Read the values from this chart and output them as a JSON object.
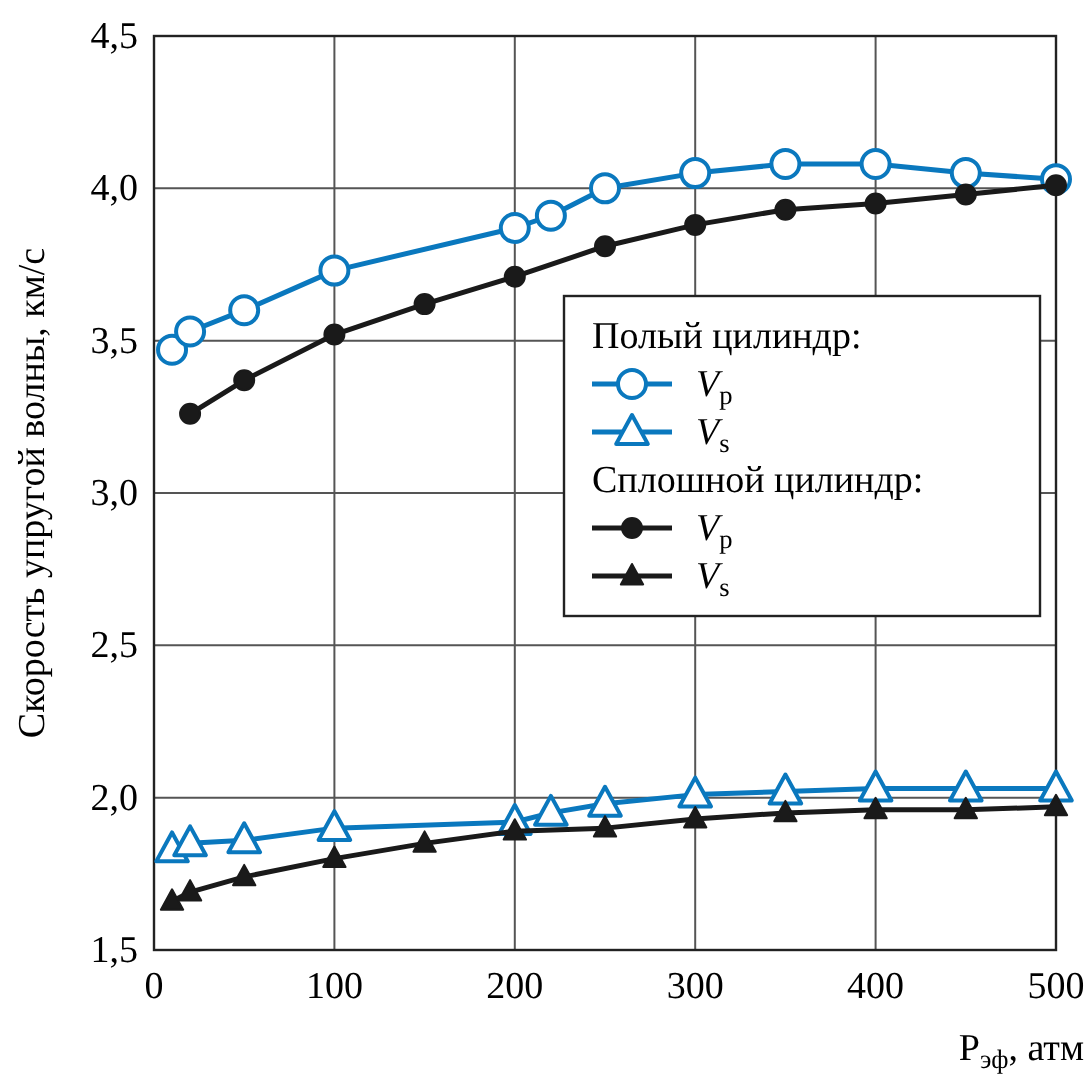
{
  "chart_data": {
    "type": "line",
    "xlabel": "P$_{эф}$, атм",
    "ylabel": "Скорость упругой волны, км/с",
    "xlim": [
      0,
      500
    ],
    "xticks": [
      0,
      100,
      200,
      300,
      400,
      500
    ],
    "ylim": [
      1.5,
      4.5
    ],
    "yticks": [
      {
        "value": 1.5,
        "label": "1,5"
      },
      {
        "value": 2,
        "label": "2,0"
      },
      {
        "value": 2.5,
        "label": "2,5"
      },
      {
        "value": 3,
        "label": "3,0"
      },
      {
        "value": 3.5,
        "label": "3,5"
      },
      {
        "value": 4,
        "label": "4,0"
      },
      {
        "value": 4.5,
        "label": "4,5"
      }
    ],
    "grid": true,
    "legend": "right",
    "annotations": [
      "Полый цилиндр:",
      "Сплошной цилиндр:"
    ],
    "series": [
      {
        "name": "V$_{p}$",
        "color": "#0a78be",
        "marker": "circle",
        "x": [
          10,
          20,
          50,
          100,
          200,
          220,
          250,
          300,
          350,
          400,
          450,
          500
        ],
        "values": [
          3.47,
          3.53,
          3.6,
          3.73,
          3.87,
          3.91,
          4.0,
          4.05,
          4.08,
          4.08,
          4.05,
          4.03
        ]
      },
      {
        "name": "V$_{s}$",
        "color": "#0a78be",
        "marker": "triangle",
        "x": [
          10,
          20,
          50,
          100,
          200,
          220,
          250,
          300,
          350,
          400,
          450,
          500
        ],
        "values": [
          1.83,
          1.85,
          1.86,
          1.9,
          1.92,
          1.95,
          1.98,
          2.01,
          2.02,
          2.03,
          2.03,
          2.03
        ]
      },
      {
        "name": "V$_{p}$",
        "color": "#1a1a1a",
        "marker": "circle",
        "x": [
          20,
          50,
          100,
          150,
          200,
          250,
          300,
          350,
          400,
          450,
          500
        ],
        "values": [
          3.26,
          3.37,
          3.52,
          3.62,
          3.71,
          3.81,
          3.88,
          3.93,
          3.95,
          3.98,
          4.01
        ]
      },
      {
        "name": "V$_{s}$",
        "color": "#1a1a1a",
        "marker": "triangle",
        "x": [
          10,
          20,
          50,
          100,
          150,
          200,
          250,
          300,
          350,
          400,
          450,
          500
        ],
        "values": [
          1.66,
          1.69,
          1.74,
          1.8,
          1.85,
          1.89,
          1.9,
          1.93,
          1.95,
          1.96,
          1.96,
          1.97
        ]
      }
    ]
  }
}
